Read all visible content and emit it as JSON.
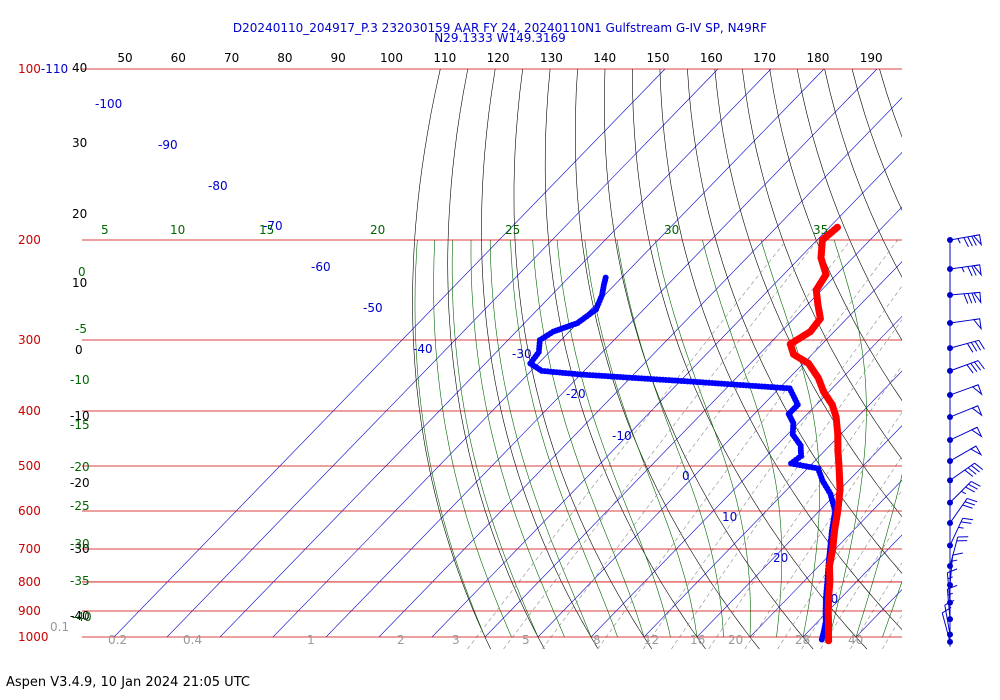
{
  "header": {
    "title_line1": "D20240110_204917_P.3 232030159 AAR FY 24, 20240110N1 Gulfstream G-IV SP, N49RF",
    "title_line2": "N29.1333 W149.3169",
    "title_color": "#0000cc"
  },
  "footer": {
    "text": "Aspen V3.4.9, 10 Jan 2024  21:05 UTC"
  },
  "colors": {
    "isobar": "#cc0000",
    "isotherm": "#0000cc",
    "dry_adiabat": "#000000",
    "moist_adiabat": "#006600",
    "mixing_ratio": "#999999",
    "temperature": "#ff0000",
    "dewpoint": "#0000ff",
    "wind": "#0000cc"
  },
  "chart_data": {
    "type": "skew-t log-p sounding",
    "pressure_labels": [
      {
        "p": 100,
        "label": "100-110"
      },
      {
        "p": 200,
        "label": "200"
      },
      {
        "p": 300,
        "label": "300"
      },
      {
        "p": 400,
        "label": "400"
      },
      {
        "p": 500,
        "label": "500"
      },
      {
        "p": 600,
        "label": "600"
      },
      {
        "p": 700,
        "label": "700"
      },
      {
        "p": 800,
        "label": "800"
      },
      {
        "p": 900,
        "label": "900"
      },
      {
        "p": 1000,
        "label": "1000"
      }
    ],
    "pressure_levels_drawn": [
      100,
      200,
      300,
      400,
      500,
      600,
      700,
      800,
      900,
      1000
    ],
    "top_scale_labels": [
      "50",
      "60",
      "70",
      "80",
      "90",
      "100",
      "110",
      "120",
      "130",
      "140",
      "150",
      "160",
      "170",
      "180",
      "190"
    ],
    "left_dry_labels": [
      "40",
      "30",
      "20",
      "10",
      "0",
      "-10",
      "-20",
      "-30",
      "-40"
    ],
    "isotherm_labels": [
      "-100",
      "-90",
      "-80",
      "-70",
      "-60",
      "-50",
      "-40",
      "-30",
      "-20",
      "-10",
      "0",
      "10",
      "20",
      "30"
    ],
    "isotherms": [
      -110,
      -100,
      -90,
      -80,
      -70,
      -60,
      -50,
      -40,
      -30,
      -20,
      -10,
      0,
      10,
      20,
      30,
      40,
      50
    ],
    "moist_top_labels": [
      "5",
      "10",
      "15",
      "20",
      "25",
      "30",
      "35"
    ],
    "moist_left_labels": [
      "0",
      "-5",
      "-10",
      "-15",
      "-20",
      "-25",
      "-30",
      "-35",
      "-40"
    ],
    "moist_adiabats": [
      -40,
      -35,
      -30,
      -25,
      -20,
      -15,
      -10,
      -5,
      0,
      5,
      10,
      15,
      20,
      25,
      30,
      35
    ],
    "mixing_ratio_labels": [
      "0.1",
      "0.2",
      "0.4",
      "1",
      "2",
      "3",
      "5",
      "8",
      "12",
      "16",
      "20",
      "28",
      "40"
    ],
    "temperature": [
      {
        "p": 1015,
        "t": 25.5
      },
      {
        "p": 1000,
        "t": 24.8
      },
      {
        "p": 950,
        "t": 22.5
      },
      {
        "p": 900,
        "t": 20.0
      },
      {
        "p": 850,
        "t": 17.5
      },
      {
        "p": 800,
        "t": 15.0
      },
      {
        "p": 750,
        "t": 12.0
      },
      {
        "p": 700,
        "t": 9.5
      },
      {
        "p": 650,
        "t": 6.5
      },
      {
        "p": 600,
        "t": 3.5
      },
      {
        "p": 550,
        "t": 0.0
      },
      {
        "p": 500,
        "t": -4.5
      },
      {
        "p": 470,
        "t": -7.5
      },
      {
        "p": 440,
        "t": -10.5
      },
      {
        "p": 410,
        "t": -14.0
      },
      {
        "p": 390,
        "t": -17.0
      },
      {
        "p": 370,
        "t": -21.0
      },
      {
        "p": 350,
        "t": -24.5
      },
      {
        "p": 330,
        "t": -29.0
      },
      {
        "p": 318,
        "t": -33.5
      },
      {
        "p": 305,
        "t": -36.0
      },
      {
        "p": 290,
        "t": -34.5
      },
      {
        "p": 275,
        "t": -35.0
      },
      {
        "p": 260,
        "t": -38.0
      },
      {
        "p": 245,
        "t": -41.0
      },
      {
        "p": 230,
        "t": -42.0
      },
      {
        "p": 215,
        "t": -46.0
      },
      {
        "p": 200,
        "t": -49.0
      },
      {
        "p": 190,
        "t": -48.5
      }
    ],
    "dewpoint": [
      {
        "p": 1010,
        "td": 24.0
      },
      {
        "p": 980,
        "td": 23.0
      },
      {
        "p": 940,
        "td": 21.5
      },
      {
        "p": 900,
        "td": 19.5
      },
      {
        "p": 850,
        "td": 17.0
      },
      {
        "p": 800,
        "td": 14.5
      },
      {
        "p": 750,
        "td": 11.8
      },
      {
        "p": 700,
        "td": 9.0
      },
      {
        "p": 650,
        "td": 6.0
      },
      {
        "p": 600,
        "td": 3.0
      },
      {
        "p": 560,
        "td": -1.0
      },
      {
        "p": 530,
        "td": -5.0
      },
      {
        "p": 505,
        "td": -8.0
      },
      {
        "p": 495,
        "td": -14.0
      },
      {
        "p": 480,
        "td": -13.5
      },
      {
        "p": 460,
        "td": -15.5
      },
      {
        "p": 440,
        "td": -19.0
      },
      {
        "p": 420,
        "td": -21.0
      },
      {
        "p": 405,
        "td": -23.5
      },
      {
        "p": 390,
        "td": -23.5
      },
      {
        "p": 365,
        "td": -28.0
      },
      {
        "p": 355,
        "td": -48.0
      },
      {
        "p": 350,
        "td": -59.0
      },
      {
        "p": 345,
        "td": -70.0
      },
      {
        "p": 340,
        "td": -78.0
      },
      {
        "p": 330,
        "td": -81.5
      },
      {
        "p": 315,
        "td": -82.0
      },
      {
        "p": 300,
        "td": -84.0
      },
      {
        "p": 290,
        "td": -83.0
      },
      {
        "p": 280,
        "td": -80.0
      },
      {
        "p": 265,
        "td": -79.0
      },
      {
        "p": 250,
        "td": -80.5
      },
      {
        "p": 240,
        "td": -82.0
      },
      {
        "p": 233,
        "td": -83.0
      }
    ],
    "wind": [
      {
        "p": 200,
        "spd": 85,
        "dir": 260
      },
      {
        "p": 225,
        "spd": 75,
        "dir": 262
      },
      {
        "p": 250,
        "spd": 80,
        "dir": 265
      },
      {
        "p": 280,
        "spd": 50,
        "dir": 262
      },
      {
        "p": 310,
        "spd": 40,
        "dir": 255
      },
      {
        "p": 340,
        "spd": 40,
        "dir": 250
      },
      {
        "p": 375,
        "spd": 50,
        "dir": 250
      },
      {
        "p": 410,
        "spd": 50,
        "dir": 248
      },
      {
        "p": 450,
        "spd": 50,
        "dir": 245
      },
      {
        "p": 490,
        "spd": 50,
        "dir": 240
      },
      {
        "p": 530,
        "spd": 40,
        "dir": 235
      },
      {
        "p": 580,
        "spd": 35,
        "dir": 225
      },
      {
        "p": 630,
        "spd": 30,
        "dir": 215
      },
      {
        "p": 690,
        "spd": 25,
        "dir": 205
      },
      {
        "p": 750,
        "spd": 20,
        "dir": 195
      },
      {
        "p": 810,
        "spd": 15,
        "dir": 185
      },
      {
        "p": 870,
        "spd": 15,
        "dir": 175
      },
      {
        "p": 930,
        "spd": 15,
        "dir": 175
      },
      {
        "p": 990,
        "spd": 10,
        "dir": 170
      },
      {
        "p": 1020,
        "spd": 10,
        "dir": 165
      }
    ]
  }
}
